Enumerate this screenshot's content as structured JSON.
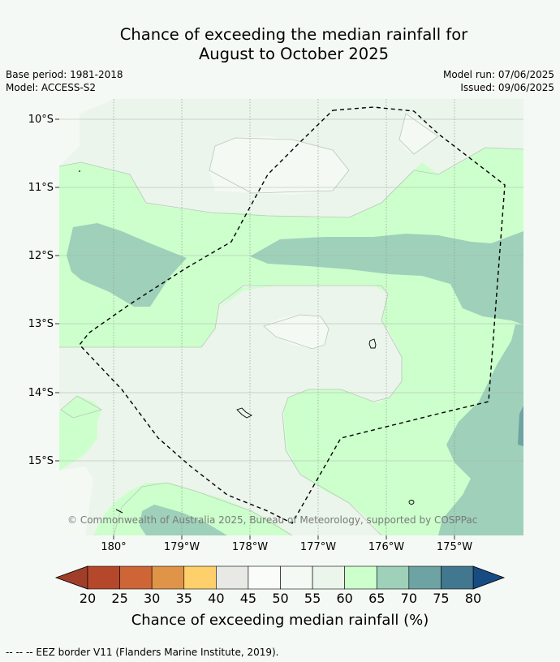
{
  "title": {
    "line1": "Chance of exceeding the median rainfall for",
    "line2": "August to October 2025"
  },
  "meta": {
    "base_period": "Base period: 1981-2018",
    "model": "Model: ACCESS-S2",
    "model_run": "Model run: 07/06/2025",
    "issued": "Issued: 09/06/2025"
  },
  "map": {
    "lat_labels": [
      "10°S",
      "11°S",
      "12°S",
      "13°S",
      "14°S",
      "15°S"
    ],
    "lon_labels": [
      "180°",
      "179°W",
      "178°W",
      "177°W",
      "176°W",
      "175°W"
    ],
    "copyright": "© Commonwealth of Australia 2025, Bureau of Meteorology, supported by COSPPac",
    "legend_footnote": "--  --  -- EEZ border V11 (Flanders Marine Institute, 2019)."
  },
  "colorbar": {
    "ticks": [
      "20",
      "25",
      "30",
      "35",
      "40",
      "45",
      "50",
      "55",
      "60",
      "65",
      "70",
      "75",
      "80"
    ],
    "colors": [
      "#b5482b",
      "#cd6536",
      "#e09448",
      "#fecf6a",
      "#e8e8e5",
      "#fafcfa",
      "#f4f9f4",
      "#ebf5eb",
      "#ccffcc",
      "#9ed0ba",
      "#6ea3a4",
      "#41788f"
    ],
    "under_color": "#a03e29",
    "over_color": "#174c82",
    "title": "Chance of exceeding median rainfall (%)"
  },
  "colors": {
    "band_55_60": "#ebf5eb",
    "band_60_65": "#ccffcc",
    "band_65_70": "#9ed0ba",
    "band_70_75": "#6ea3a4",
    "band_50_55": "#f4f9f4"
  }
}
